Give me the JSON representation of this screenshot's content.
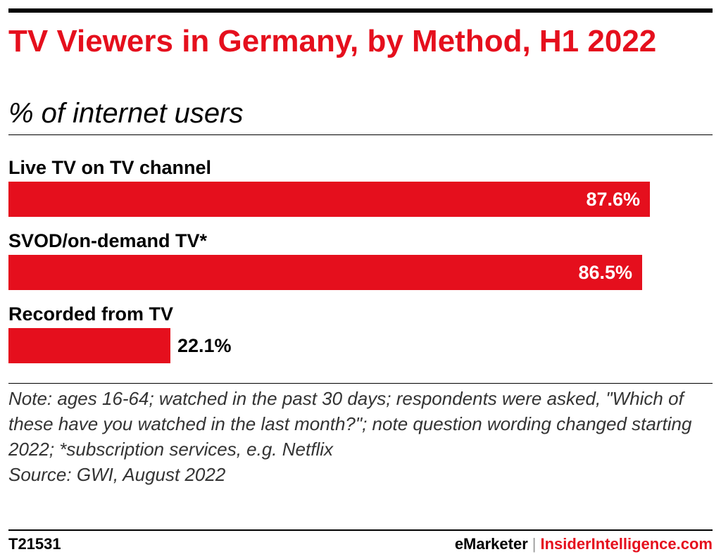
{
  "chart_data": {
    "type": "bar",
    "orientation": "horizontal",
    "title": "TV Viewers in Germany, by Method, H1 2022",
    "subtitle": "% of internet users",
    "categories": [
      "Live TV on TV channel",
      "SVOD/on-demand TV*",
      "Recorded from TV"
    ],
    "values": [
      87.6,
      86.5,
      22.1
    ],
    "value_labels": [
      "87.6%",
      "86.5%",
      "22.1%"
    ],
    "xlim": [
      0,
      100
    ],
    "grid": false,
    "legend": "none",
    "bar_color": "#e50f1d"
  },
  "note": {
    "note_label": "Note:",
    "note_text": " ages 16-64; watched in the past 30 days; respondents were asked, \"Which of these have you watched in the last month?\"; note question wording changed starting 2022; *subscription services, e.g. Netflix",
    "source": "Source: GWI, August 2022"
  },
  "footer": {
    "chart_id": "T21531",
    "brand_emarketer": "eMarketer",
    "brand_separator": "|",
    "brand_insider": "InsiderIntelligence.com"
  },
  "colors": {
    "accent": "#e50f1d",
    "text": "#000000"
  }
}
